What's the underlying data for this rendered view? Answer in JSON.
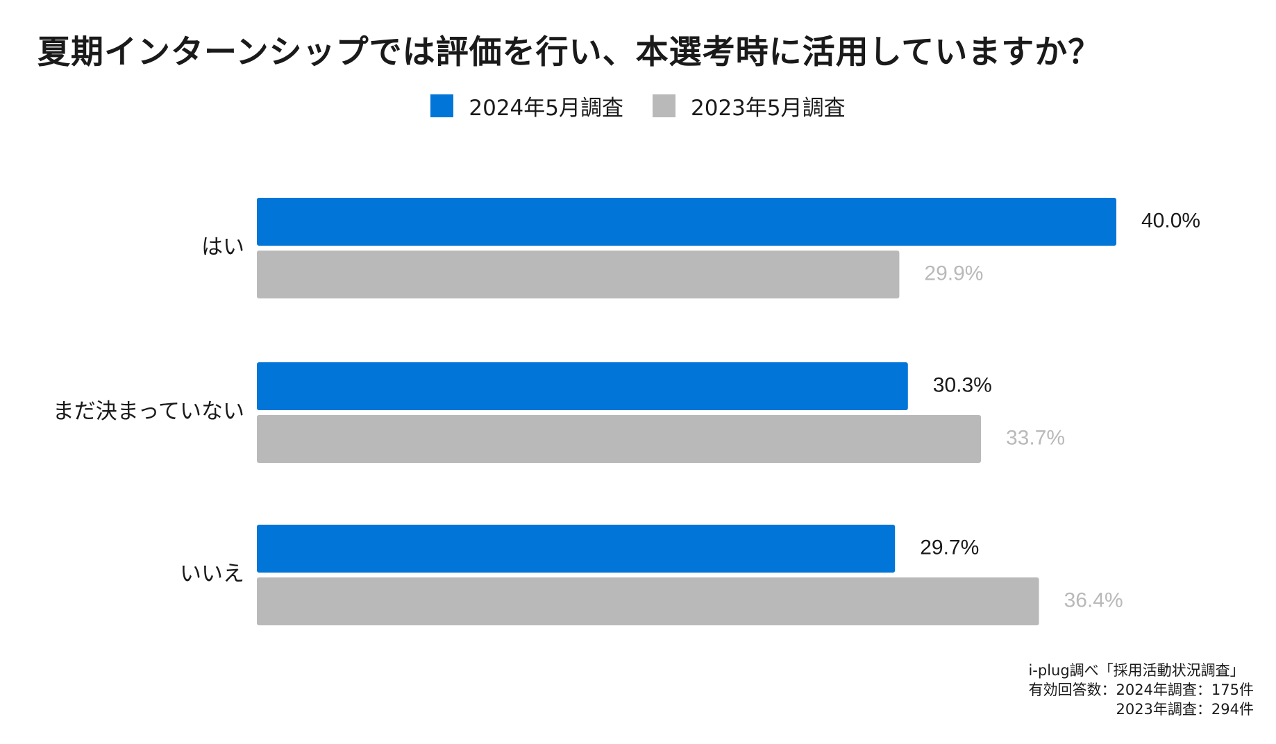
{
  "chart_data": {
    "type": "bar",
    "orientation": "horizontal",
    "title": "夏期インターンシップでは評価を行い、本選考時に活用していますか？",
    "categories": [
      "はい",
      "まだ決まっていない",
      "いいえ"
    ],
    "series": [
      {
        "name": "2024年5月調査",
        "color": "#0275d8",
        "label_color": "#1a1a1a",
        "values": [
          40.0,
          30.3,
          29.7
        ],
        "labels": [
          "40.0%",
          "30.3%",
          "29.7%"
        ]
      },
      {
        "name": "2023年5月調査",
        "color": "#b9b9b9",
        "label_color": "#b9b9b9",
        "values": [
          29.9,
          33.7,
          36.4
        ],
        "labels": [
          "29.9%",
          "33.7%",
          "36.4%"
        ]
      }
    ],
    "xlim": [
      0,
      40.0
    ],
    "grid": false,
    "legend_position": "top-center",
    "unit": "%"
  },
  "source": {
    "line1": "i-plug調べ「採用活動状況調査」",
    "line2": "有効回答数：2024年調査：175件",
    "line3": "2023年調査：294件"
  }
}
